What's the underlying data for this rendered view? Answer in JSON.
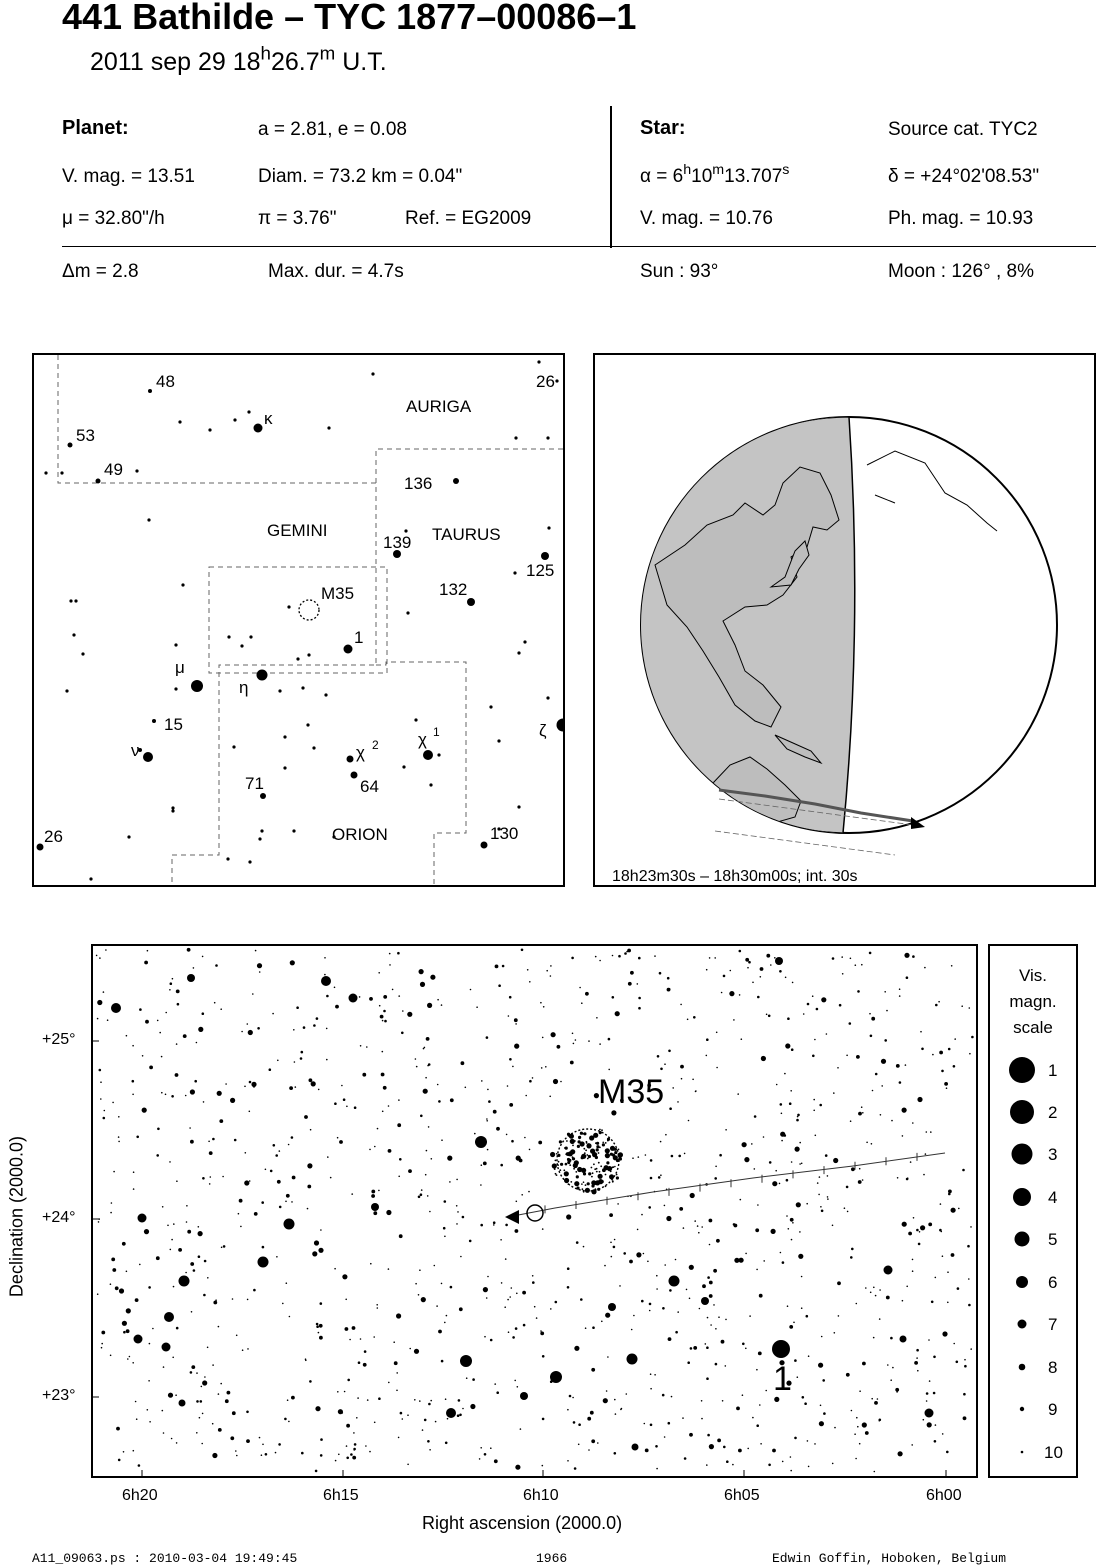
{
  "header": {
    "title": "441 Bathilde  –  TYC 1877–00086–1",
    "date_prefix": "2011 sep 29  18",
    "date_h": "h",
    "date_mid": "26.7",
    "date_m": "m",
    "date_suffix": " U.T."
  },
  "planet": {
    "heading": "Planet:",
    "ae": "a = 2.81, e = 0.08",
    "vmag": "V. mag. = 13.51",
    "diam": "Diam. = 73.2 km = 0.04\"",
    "mu": "μ =  32.80\"/h",
    "pi": "π =  3.76\"",
    "ref": "Ref. = EG2009"
  },
  "star": {
    "heading": "Star:",
    "source": "Source cat.  TYC2",
    "alpha_prefix": "α =  6",
    "alpha_h": "h",
    "alpha_mid": "10",
    "alpha_m": "m",
    "alpha_val": "13.707",
    "alpha_s": "s",
    "delta": "δ = +24°02'08.53\"",
    "vmag": "V. mag. = 10.76",
    "phmag": "Ph. mag. = 10.93"
  },
  "summary": {
    "dm": "Δm = 2.8",
    "maxdur": "Max. dur. = 4.7s",
    "sun": "Sun :  93°",
    "moon": "Moon : 126° ,  8%"
  },
  "finder": {
    "labels": {
      "auriga": "AURIGA",
      "gemini": "GEMINI",
      "taurus": "TAURUS",
      "orion": "ORION",
      "m35": "M35",
      "n48": "48",
      "n53": "53",
      "n49": "49",
      "n26a": "26",
      "n26b": "26",
      "n136": "136",
      "n139": "139",
      "n125": "125",
      "n132": "132",
      "n1": "1",
      "n15": "15",
      "n71": "71",
      "n64": "64",
      "n130": "130",
      "kappa": "κ",
      "mu": "μ",
      "eta": "η",
      "nu": "ν",
      "zeta": "ζ",
      "chi2": "χ",
      "chi2_sup": "2",
      "chi1": "χ",
      "chi1_sup": "1"
    }
  },
  "globe": {
    "caption": "18h23m30s – 18h30m00s; int. 30s"
  },
  "starmap": {
    "m35_label": "M35",
    "star1_label": "1",
    "y_ticks": [
      "+25°",
      "+24°",
      "+23°"
    ],
    "x_ticks": [
      "6h20",
      "6h15",
      "6h10",
      "6h05",
      "6h00"
    ],
    "ylabel": "Declination (2000.0)",
    "xlabel": "Right ascension (2000.0)"
  },
  "legend": {
    "title_lines": [
      "Vis.",
      "magn.",
      "scale"
    ],
    "mags": [
      "1",
      "2",
      "3",
      "4",
      "5",
      "6",
      "7",
      "8",
      "9",
      "10"
    ]
  },
  "footer": {
    "file": "A11_09063.ps : 2010-03-04 19:49:45",
    "num": "1966",
    "author": "Edwin Goffin, Hoboken, Belgium"
  }
}
